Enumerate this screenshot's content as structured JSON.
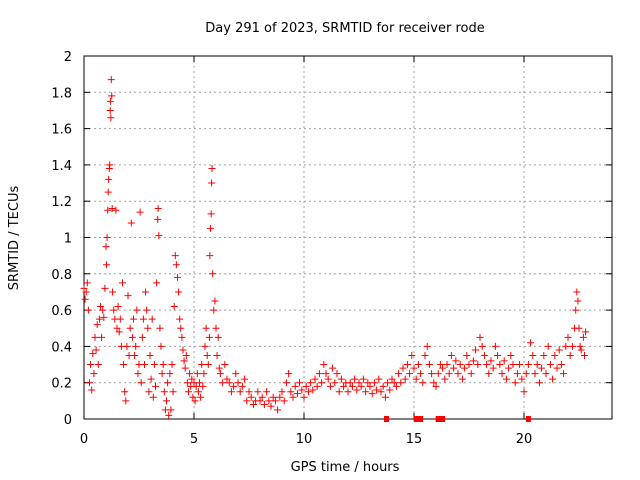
{
  "chart_data": {
    "type": "scatter",
    "title": "Day 291 of 2023, SRMTID for receiver rode",
    "xlabel": "GPS time / hours",
    "ylabel": "SRMTID / TECUs",
    "xlim": [
      0,
      24
    ],
    "ylim": [
      0,
      2
    ],
    "xticks": [
      0,
      5,
      10,
      15,
      20
    ],
    "xtick_labels": [
      "0",
      "5",
      "10",
      "15",
      "20"
    ],
    "yticks": [
      0,
      0.2,
      0.4,
      0.6,
      0.8,
      1,
      1.2,
      1.4,
      1.6,
      1.8,
      2
    ],
    "ytick_labels": [
      "0",
      "0.2",
      "0.4",
      "0.6",
      "0.8",
      "1",
      "1.2",
      "1.4",
      "1.6",
      "1.8",
      "2"
    ],
    "grid": true,
    "marker": "plus",
    "color": "#ff0000",
    "series": [
      {
        "name": "SRMTID",
        "points": [
          [
            0.0,
            0.72
          ],
          [
            0.05,
            0.66
          ],
          [
            0.1,
            0.7
          ],
          [
            0.15,
            0.75
          ],
          [
            0.2,
            0.6
          ],
          [
            0.25,
            0.2
          ],
          [
            0.3,
            0.3
          ],
          [
            0.35,
            0.16
          ],
          [
            0.4,
            0.36
          ],
          [
            0.45,
            0.25
          ],
          [
            0.5,
            0.45
          ],
          [
            0.55,
            0.38
          ],
          [
            0.6,
            0.52
          ],
          [
            0.65,
            0.3
          ],
          [
            0.7,
            0.55
          ],
          [
            0.75,
            0.62
          ],
          [
            0.8,
            0.45
          ],
          [
            0.85,
            0.6
          ],
          [
            0.9,
            0.56
          ],
          [
            0.95,
            0.72
          ],
          [
            1.0,
            0.95
          ],
          [
            1.02,
            0.85
          ],
          [
            1.05,
            1.0
          ],
          [
            1.08,
            1.15
          ],
          [
            1.1,
            1.25
          ],
          [
            1.12,
            1.32
          ],
          [
            1.15,
            1.38
          ],
          [
            1.17,
            1.4
          ],
          [
            1.19,
            1.7
          ],
          [
            1.2,
            1.75
          ],
          [
            1.22,
            1.66
          ],
          [
            1.24,
            1.87
          ],
          [
            1.26,
            1.78
          ],
          [
            1.28,
            1.16
          ],
          [
            1.3,
            0.7
          ],
          [
            1.35,
            0.6
          ],
          [
            1.4,
            0.55
          ],
          [
            1.45,
            1.15
          ],
          [
            1.5,
            0.5
          ],
          [
            1.55,
            0.62
          ],
          [
            1.6,
            0.48
          ],
          [
            1.65,
            0.55
          ],
          [
            1.7,
            0.4
          ],
          [
            1.75,
            0.75
          ],
          [
            1.8,
            0.3
          ],
          [
            1.85,
            0.15
          ],
          [
            1.9,
            0.1
          ],
          [
            1.95,
            0.4
          ],
          [
            2.0,
            0.68
          ],
          [
            2.05,
            0.35
          ],
          [
            2.1,
            0.5
          ],
          [
            2.15,
            1.08
          ],
          [
            2.2,
            0.45
          ],
          [
            2.25,
            0.55
          ],
          [
            2.3,
            0.35
          ],
          [
            2.35,
            0.4
          ],
          [
            2.4,
            0.6
          ],
          [
            2.45,
            0.25
          ],
          [
            2.5,
            0.3
          ],
          [
            2.55,
            1.14
          ],
          [
            2.6,
            0.2
          ],
          [
            2.65,
            0.45
          ],
          [
            2.7,
            0.55
          ],
          [
            2.75,
            0.3
          ],
          [
            2.8,
            0.7
          ],
          [
            2.85,
            0.6
          ],
          [
            2.9,
            0.5
          ],
          [
            2.95,
            0.15
          ],
          [
            3.0,
            0.35
          ],
          [
            3.05,
            0.22
          ],
          [
            3.1,
            0.55
          ],
          [
            3.15,
            0.12
          ],
          [
            3.2,
            0.3
          ],
          [
            3.25,
            0.18
          ],
          [
            3.3,
            0.75
          ],
          [
            3.35,
            1.1
          ],
          [
            3.37,
            1.16
          ],
          [
            3.4,
            1.01
          ],
          [
            3.45,
            0.5
          ],
          [
            3.5,
            0.4
          ],
          [
            3.55,
            0.25
          ],
          [
            3.6,
            0.3
          ],
          [
            3.65,
            0.15
          ],
          [
            3.7,
            0.05
          ],
          [
            3.75,
            0.1
          ],
          [
            3.8,
            0.2
          ],
          [
            3.85,
            0.02
          ],
          [
            3.9,
            0.25
          ],
          [
            3.95,
            0.05
          ],
          [
            4.0,
            0.3
          ],
          [
            4.05,
            0.15
          ],
          [
            4.1,
            0.62
          ],
          [
            4.15,
            0.9
          ],
          [
            4.2,
            0.85
          ],
          [
            4.25,
            0.78
          ],
          [
            4.3,
            0.7
          ],
          [
            4.35,
            0.55
          ],
          [
            4.4,
            0.5
          ],
          [
            4.45,
            0.45
          ],
          [
            4.5,
            0.38
          ],
          [
            4.55,
            0.32
          ],
          [
            4.6,
            0.28
          ],
          [
            4.65,
            0.35
          ],
          [
            4.7,
            0.2
          ],
          [
            4.75,
            0.15
          ],
          [
            4.8,
            0.25
          ],
          [
            4.85,
            0.18
          ],
          [
            4.9,
            0.22
          ],
          [
            4.95,
            0.12
          ],
          [
            5.0,
            0.2
          ],
          [
            5.05,
            0.1
          ],
          [
            5.1,
            0.18
          ],
          [
            5.15,
            0.25
          ],
          [
            5.2,
            0.15
          ],
          [
            5.25,
            0.2
          ],
          [
            5.3,
            0.12
          ],
          [
            5.35,
            0.3
          ],
          [
            5.4,
            0.18
          ],
          [
            5.45,
            0.25
          ],
          [
            5.5,
            0.4
          ],
          [
            5.55,
            0.5
          ],
          [
            5.6,
            0.35
          ],
          [
            5.65,
            0.3
          ],
          [
            5.7,
            0.45
          ],
          [
            5.72,
            0.9
          ],
          [
            5.75,
            1.05
          ],
          [
            5.78,
            1.13
          ],
          [
            5.8,
            1.3
          ],
          [
            5.82,
            1.38
          ],
          [
            5.85,
            0.8
          ],
          [
            5.9,
            0.6
          ],
          [
            5.95,
            0.65
          ],
          [
            6.0,
            0.5
          ],
          [
            6.05,
            0.35
          ],
          [
            6.1,
            0.45
          ],
          [
            6.15,
            0.28
          ],
          [
            6.2,
            0.25
          ],
          [
            6.3,
            0.2
          ],
          [
            6.4,
            0.3
          ],
          [
            6.5,
            0.22
          ],
          [
            6.6,
            0.2
          ],
          [
            6.7,
            0.15
          ],
          [
            6.8,
            0.18
          ],
          [
            6.9,
            0.25
          ],
          [
            7.0,
            0.2
          ],
          [
            7.1,
            0.15
          ],
          [
            7.2,
            0.18
          ],
          [
            7.3,
            0.22
          ],
          [
            7.4,
            0.1
          ],
          [
            7.5,
            0.15
          ],
          [
            7.6,
            0.12
          ],
          [
            7.7,
            0.08
          ],
          [
            7.8,
            0.1
          ],
          [
            7.9,
            0.15
          ],
          [
            8.0,
            0.1
          ],
          [
            8.1,
            0.12
          ],
          [
            8.2,
            0.08
          ],
          [
            8.3,
            0.15
          ],
          [
            8.4,
            0.1
          ],
          [
            8.5,
            0.07
          ],
          [
            8.6,
            0.12
          ],
          [
            8.7,
            0.1
          ],
          [
            8.8,
            0.05
          ],
          [
            8.9,
            0.12
          ],
          [
            9.0,
            0.15
          ],
          [
            9.1,
            0.1
          ],
          [
            9.2,
            0.2
          ],
          [
            9.3,
            0.25
          ],
          [
            9.4,
            0.15
          ],
          [
            9.5,
            0.12
          ],
          [
            9.6,
            0.18
          ],
          [
            9.7,
            0.14
          ],
          [
            9.8,
            0.2
          ],
          [
            9.9,
            0.16
          ],
          [
            10.0,
            0.12
          ],
          [
            10.1,
            0.18
          ],
          [
            10.2,
            0.15
          ],
          [
            10.3,
            0.2
          ],
          [
            10.4,
            0.16
          ],
          [
            10.5,
            0.22
          ],
          [
            10.6,
            0.18
          ],
          [
            10.7,
            0.25
          ],
          [
            10.8,
            0.2
          ],
          [
            10.9,
            0.3
          ],
          [
            11.0,
            0.25
          ],
          [
            11.1,
            0.22
          ],
          [
            11.2,
            0.18
          ],
          [
            11.3,
            0.28
          ],
          [
            11.4,
            0.2
          ],
          [
            11.5,
            0.25
          ],
          [
            11.6,
            0.15
          ],
          [
            11.7,
            0.22
          ],
          [
            11.8,
            0.18
          ],
          [
            11.9,
            0.2
          ],
          [
            12.0,
            0.15
          ],
          [
            12.1,
            0.2
          ],
          [
            12.2,
            0.18
          ],
          [
            12.3,
            0.22
          ],
          [
            12.4,
            0.16
          ],
          [
            12.5,
            0.2
          ],
          [
            12.6,
            0.18
          ],
          [
            12.7,
            0.22
          ],
          [
            12.8,
            0.15
          ],
          [
            12.9,
            0.2
          ],
          [
            13.0,
            0.18
          ],
          [
            13.1,
            0.14
          ],
          [
            13.2,
            0.2
          ],
          [
            13.3,
            0.16
          ],
          [
            13.4,
            0.22
          ],
          [
            13.5,
            0.15
          ],
          [
            13.6,
            0.18
          ],
          [
            13.7,
            0.12
          ],
          [
            13.8,
            0.2
          ],
          [
            13.9,
            0.16
          ],
          [
            14.0,
            0.22
          ],
          [
            14.1,
            0.2
          ],
          [
            14.2,
            0.18
          ],
          [
            14.3,
            0.25
          ],
          [
            14.4,
            0.2
          ],
          [
            14.5,
            0.28
          ],
          [
            14.6,
            0.22
          ],
          [
            14.7,
            0.3
          ],
          [
            14.8,
            0.25
          ],
          [
            14.9,
            0.35
          ],
          [
            15.0,
            0.28
          ],
          [
            15.1,
            0.22
          ],
          [
            15.2,
            0.3
          ],
          [
            15.3,
            0.25
          ],
          [
            15.4,
            0.2
          ],
          [
            15.5,
            0.35
          ],
          [
            15.6,
            0.4
          ],
          [
            15.7,
            0.3
          ],
          [
            15.8,
            0.25
          ],
          [
            15.9,
            0.2
          ],
          [
            16.0,
            0.18
          ],
          [
            16.1,
            0.25
          ],
          [
            16.2,
            0.3
          ],
          [
            16.3,
            0.28
          ],
          [
            16.4,
            0.22
          ],
          [
            16.5,
            0.3
          ],
          [
            16.6,
            0.25
          ],
          [
            16.7,
            0.35
          ],
          [
            16.8,
            0.28
          ],
          [
            16.9,
            0.32
          ],
          [
            17.0,
            0.25
          ],
          [
            17.1,
            0.3
          ],
          [
            17.2,
            0.22
          ],
          [
            17.3,
            0.28
          ],
          [
            17.4,
            0.35
          ],
          [
            17.5,
            0.3
          ],
          [
            17.6,
            0.25
          ],
          [
            17.7,
            0.32
          ],
          [
            17.8,
            0.38
          ],
          [
            17.9,
            0.3
          ],
          [
            18.0,
            0.45
          ],
          [
            18.1,
            0.4
          ],
          [
            18.2,
            0.35
          ],
          [
            18.3,
            0.3
          ],
          [
            18.4,
            0.25
          ],
          [
            18.5,
            0.32
          ],
          [
            18.6,
            0.28
          ],
          [
            18.7,
            0.4
          ],
          [
            18.8,
            0.35
          ],
          [
            18.9,
            0.3
          ],
          [
            19.0,
            0.25
          ],
          [
            19.1,
            0.32
          ],
          [
            19.2,
            0.22
          ],
          [
            19.3,
            0.28
          ],
          [
            19.4,
            0.35
          ],
          [
            19.5,
            0.3
          ],
          [
            19.6,
            0.2
          ],
          [
            19.7,
            0.25
          ],
          [
            19.8,
            0.3
          ],
          [
            19.9,
            0.22
          ],
          [
            20.0,
            0.15
          ],
          [
            20.1,
            0.25
          ],
          [
            20.2,
            0.3
          ],
          [
            20.3,
            0.42
          ],
          [
            20.4,
            0.35
          ],
          [
            20.5,
            0.25
          ],
          [
            20.6,
            0.3
          ],
          [
            20.7,
            0.2
          ],
          [
            20.8,
            0.28
          ],
          [
            20.9,
            0.35
          ],
          [
            21.0,
            0.25
          ],
          [
            21.1,
            0.4
          ],
          [
            21.2,
            0.3
          ],
          [
            21.3,
            0.22
          ],
          [
            21.4,
            0.35
          ],
          [
            21.5,
            0.28
          ],
          [
            21.6,
            0.38
          ],
          [
            21.7,
            0.3
          ],
          [
            21.8,
            0.25
          ],
          [
            21.9,
            0.4
          ],
          [
            22.0,
            0.45
          ],
          [
            22.1,
            0.35
          ],
          [
            22.2,
            0.4
          ],
          [
            22.3,
            0.5
          ],
          [
            22.35,
            0.6
          ],
          [
            22.4,
            0.7
          ],
          [
            22.45,
            0.65
          ],
          [
            22.5,
            0.5
          ],
          [
            22.55,
            0.4
          ],
          [
            22.6,
            0.38
          ],
          [
            22.7,
            0.45
          ],
          [
            22.75,
            0.35
          ],
          [
            22.8,
            0.48
          ]
        ]
      }
    ],
    "zero_markers_x": [
      13.75,
      15.1,
      15.2,
      15.3,
      16.1,
      16.2,
      16.3,
      20.2
    ]
  }
}
